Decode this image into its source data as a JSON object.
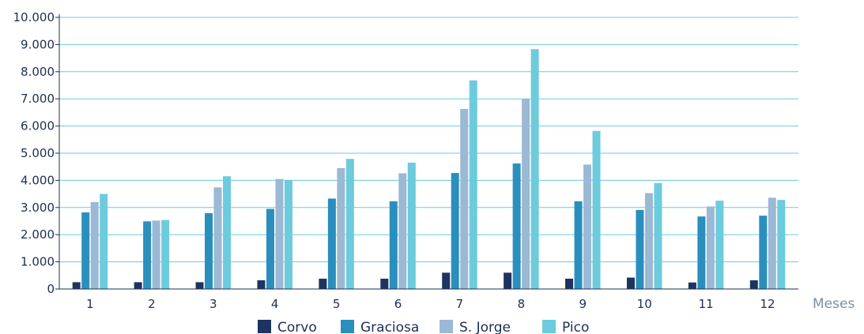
{
  "chart_data": {
    "type": "bar",
    "categories": [
      "1",
      "2",
      "3",
      "4",
      "5",
      "6",
      "7",
      "8",
      "9",
      "10",
      "11",
      "12"
    ],
    "series": [
      {
        "name": "Corvo",
        "color": "#1d3461",
        "values": [
          250,
          250,
          250,
          320,
          380,
          380,
          600,
          600,
          380,
          420,
          240,
          320
        ]
      },
      {
        "name": "Graciosa",
        "color": "#2a8fbd",
        "values": [
          2820,
          2490,
          2790,
          2950,
          3330,
          3230,
          4270,
          4620,
          3230,
          2910,
          2670,
          2700
        ]
      },
      {
        "name": "S. Jorge",
        "color": "#9bb9d4",
        "values": [
          3200,
          2520,
          3740,
          4050,
          4450,
          4260,
          6630,
          7000,
          4580,
          3530,
          3040,
          3360
        ]
      },
      {
        "name": "Pico",
        "color": "#6ccbdd",
        "values": [
          3500,
          2540,
          4150,
          4000,
          4790,
          4650,
          7680,
          8830,
          5820,
          3900,
          3250,
          3280
        ]
      }
    ],
    "xlabel": "Meses",
    "yticks": [
      "0",
      "1.000",
      "2.000",
      "3.000",
      "4.000",
      "5.000",
      "6.000",
      "7.000",
      "8.000",
      "9.000",
      "10.000"
    ],
    "ylim": [
      0,
      10000
    ],
    "grid": true,
    "legend": "bottom"
  }
}
